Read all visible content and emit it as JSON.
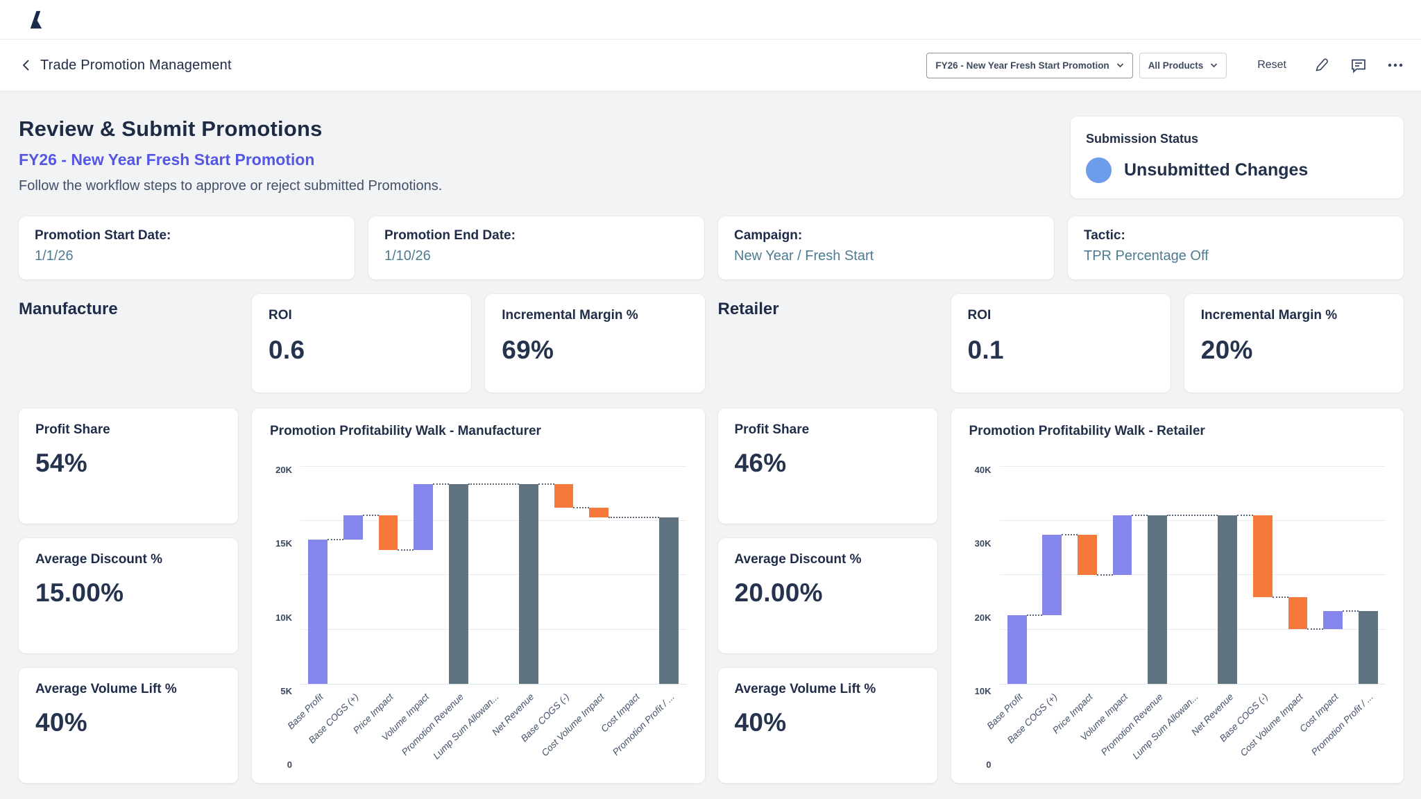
{
  "header": {
    "back_label": "Trade Promotion Management",
    "promotion_dropdown": "FY26 - New Year Fresh Start Promotion",
    "products_dropdown": "All Products",
    "reset_label": "Reset",
    "icons": [
      "edit-pencil-icon",
      "comment-icon",
      "more-ellipsis-icon"
    ]
  },
  "page": {
    "title": "Review & Submit Promotions",
    "subtitle": "FY26 - New Year Fresh Start Promotion",
    "description": "Follow the workflow steps to approve or reject submitted Promotions."
  },
  "submission": {
    "label": "Submission Status",
    "status": "Unsubmitted Changes",
    "status_color": "#6d9dea"
  },
  "info_cards": [
    {
      "label": "Promotion Start Date:",
      "value": "1/1/26"
    },
    {
      "label": "Promotion End Date:",
      "value": "1/10/26"
    },
    {
      "label": "Campaign:",
      "value": "New Year / Fresh Start"
    },
    {
      "label": "Tactic:",
      "value": "TPR Percentage Off"
    }
  ],
  "manufacture": {
    "heading": "Manufacture",
    "kpi_top": [
      {
        "label": "ROI",
        "value": "0.6"
      },
      {
        "label": "Incremental Margin %",
        "value": "69%"
      }
    ],
    "kpi_side": [
      {
        "label": "Profit Share",
        "value": "54%"
      },
      {
        "label": "Average Discount %",
        "value": "15.00%"
      },
      {
        "label": "Average Volume Lift %",
        "value": "40%"
      }
    ]
  },
  "retailer": {
    "heading": "Retailer",
    "kpi_top": [
      {
        "label": "ROI",
        "value": "0.1"
      },
      {
        "label": "Incremental Margin %",
        "value": "20%"
      }
    ],
    "kpi_side": [
      {
        "label": "Profit Share",
        "value": "46%"
      },
      {
        "label": "Average Discount %",
        "value": "20.00%"
      },
      {
        "label": "Average Volume Lift %",
        "value": "40%"
      }
    ]
  },
  "chart_colors": {
    "increase": "#8486ec",
    "decrease": "#f5793b",
    "total": "#5f7380"
  },
  "chart_data": [
    {
      "type": "bar",
      "subtype": "waterfall",
      "title": "Promotion Profitability Walk - Manufacturer",
      "ylim": [
        0,
        21000
      ],
      "yticks": [
        0,
        5000,
        10000,
        15000,
        20000
      ],
      "ytick_labels": [
        "0",
        "5K",
        "10K",
        "15K",
        "20K"
      ],
      "grid": true,
      "legend": false,
      "steps": [
        {
          "label": "Base Profit",
          "kind": "delta",
          "value": 13300
        },
        {
          "label": "Base COGS (+)",
          "kind": "delta",
          "value": 2200
        },
        {
          "label": "Price Impact",
          "kind": "delta",
          "value": -3200
        },
        {
          "label": "Volume Impact",
          "kind": "delta",
          "value": 6100
        },
        {
          "label": "Promotion Revenue",
          "kind": "total",
          "value": 18400
        },
        {
          "label": "Lump Sum Allowan...",
          "kind": "none",
          "value": 0
        },
        {
          "label": "Net Revenue",
          "kind": "total",
          "value": 18400
        },
        {
          "label": "Base COGS (-)",
          "kind": "delta",
          "value": -2200
        },
        {
          "label": "Cost Volume Impact",
          "kind": "delta",
          "value": -900
        },
        {
          "label": "Cost Impact",
          "kind": "none",
          "value": 0
        },
        {
          "label": "Promotion Profit / ...",
          "kind": "total",
          "value": 15300
        }
      ]
    },
    {
      "type": "bar",
      "subtype": "waterfall",
      "title": "Promotion Profitability Walk - Retailer",
      "ylim": [
        0,
        42000
      ],
      "yticks": [
        0,
        10000,
        20000,
        30000,
        40000
      ],
      "ytick_labels": [
        "0",
        "10K",
        "20K",
        "30K",
        "40K"
      ],
      "grid": true,
      "legend": false,
      "steps": [
        {
          "label": "Base Profit",
          "kind": "delta",
          "value": 12600
        },
        {
          "label": "Base COGS (+)",
          "kind": "delta",
          "value": 14900
        },
        {
          "label": "Price Impact",
          "kind": "delta",
          "value": -7500
        },
        {
          "label": "Volume Impact",
          "kind": "delta",
          "value": 11000
        },
        {
          "label": "Promotion Revenue",
          "kind": "total",
          "value": 31000
        },
        {
          "label": "Lump Sum Allowan...",
          "kind": "none",
          "value": 0
        },
        {
          "label": "Net Revenue",
          "kind": "total",
          "value": 31000
        },
        {
          "label": "Base COGS (-)",
          "kind": "delta",
          "value": -15000
        },
        {
          "label": "Cost Volume Impact",
          "kind": "delta",
          "value": -5900
        },
        {
          "label": "Cost Impact",
          "kind": "delta",
          "value": 3300
        },
        {
          "label": "Promotion Profit / ...",
          "kind": "total",
          "value": 13400
        }
      ]
    }
  ]
}
